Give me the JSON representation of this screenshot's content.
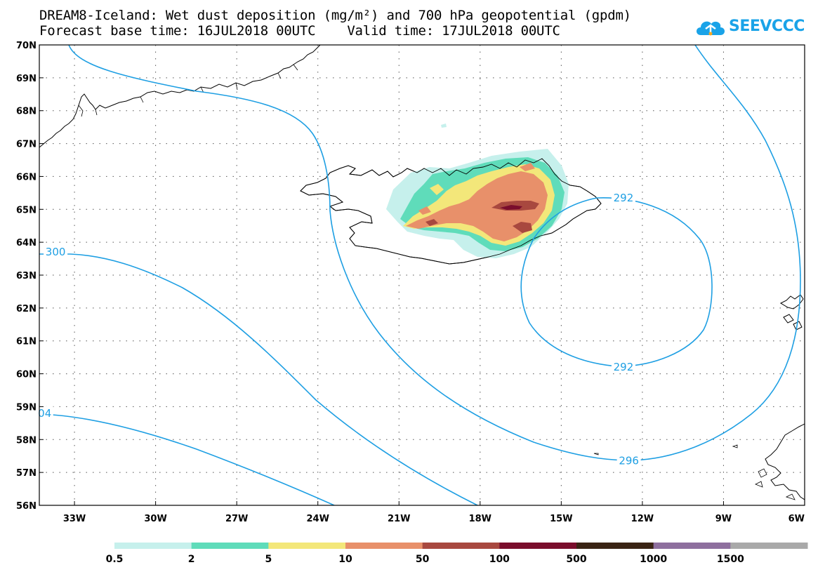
{
  "title_line1": "DREAM8-Iceland: Wet dust deposition (mg/m²) and 700 hPa geopotential (gpdm)",
  "title_line2": "Forecast base time: 16JUL2018 00UTC    Valid time: 17JUL2018 00UTC",
  "logo_text": "SEEVCCC",
  "logo_icon": "cloud-logo-icon",
  "map": {
    "lon_range": [
      -34.3,
      -6
    ],
    "lat_range": [
      56,
      70
    ],
    "lat_ticks": [
      "70N",
      "69N",
      "68N",
      "67N",
      "66N",
      "65N",
      "64N",
      "63N",
      "62N",
      "61N",
      "60N",
      "59N",
      "58N",
      "57N",
      "56N"
    ],
    "lon_ticks": [
      "33W",
      "30W",
      "27W",
      "24W",
      "21W",
      "18W",
      "15W",
      "12W",
      "9W",
      "6W"
    ],
    "gridlines": "dotted",
    "contour_color": "#1e9fe3",
    "contour_labels": [
      {
        "text": "300",
        "lon": -33.7,
        "lat": 63.7
      },
      {
        "text": "04",
        "lon": -34.1,
        "lat": 58.8
      },
      {
        "text": "292",
        "lon": -12.7,
        "lat": 65.35
      },
      {
        "text": "292",
        "lon": -12.7,
        "lat": 60.2
      },
      {
        "text": "296",
        "lon": -12.5,
        "lat": 57.35
      }
    ]
  },
  "legend": {
    "labels": [
      "0.5",
      "2",
      "5",
      "10",
      "50",
      "100",
      "500",
      "1000",
      "1500"
    ],
    "colors": [
      "#c6f0ec",
      "#5fdcba",
      "#f3e77a",
      "#e8906a",
      "#a8483f",
      "#7a0d2c",
      "#3a2414",
      "#8e6f9e",
      "#a9a9a9"
    ]
  }
}
